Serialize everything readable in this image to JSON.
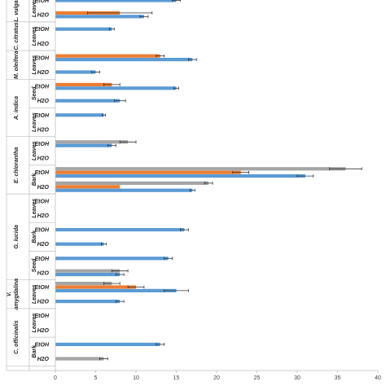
{
  "chart_data": {
    "type": "bar",
    "orientation": "horizontal",
    "xlim": [
      0,
      40
    ],
    "x_ticks": [
      "0",
      "5",
      "10",
      "15",
      "20",
      "25",
      "30",
      "35",
      "40"
    ],
    "grid": false,
    "series_colors": {
      "blue": "#5b9bd5",
      "orange": "#ed7d31",
      "gray": "#a5a5a5"
    },
    "rows": [
      {
        "species": "L. vulgaris",
        "part": "Leaves",
        "solvent": "EtOH",
        "bars": [
          {
            "color": "blue",
            "value": 15,
            "err": 0.5
          }
        ]
      },
      {
        "species": "L. vulgaris",
        "part": "Leaves",
        "solvent": "H2O",
        "bars": [
          {
            "color": "orange",
            "value": 8,
            "err": 4
          },
          {
            "color": "blue",
            "value": 11,
            "err": 0.5
          }
        ]
      },
      {
        "species": "C. citratus",
        "part": "Leaves",
        "solvent": "EtOH",
        "bars": [
          {
            "color": "blue",
            "value": 7,
            "err": 0.3
          }
        ]
      },
      {
        "species": "C. citratus",
        "part": "Leaves",
        "solvent": "H2O",
        "bars": []
      },
      {
        "species": "M. oleifera",
        "part": "Leaves",
        "solvent": "EtOH",
        "bars": [
          {
            "color": "orange",
            "value": 13,
            "err": 0.5
          },
          {
            "color": "blue",
            "value": 17,
            "err": 0.5
          }
        ]
      },
      {
        "species": "M. oleifera",
        "part": "Leaves",
        "solvent": "H2O",
        "bars": [
          {
            "color": "blue",
            "value": 5,
            "err": 0.5
          }
        ]
      },
      {
        "species": "A. indica",
        "part": "Seed",
        "solvent": "EtOH",
        "bars": [
          {
            "color": "orange",
            "value": 7,
            "err": 1
          },
          {
            "color": "blue",
            "value": 15,
            "err": 0.3
          }
        ]
      },
      {
        "species": "A. indica",
        "part": "Seed",
        "solvent": "H2O",
        "bars": [
          {
            "color": "blue",
            "value": 8,
            "err": 0.7
          }
        ]
      },
      {
        "species": "A. indica",
        "part": "Leaves",
        "solvent": "EtOH",
        "bars": [
          {
            "color": "blue",
            "value": 6,
            "err": 0.2
          }
        ]
      },
      {
        "species": "A. indica",
        "part": "Leaves",
        "solvent": "H2O",
        "bars": []
      },
      {
        "species": "E. chlorantha",
        "part": "Leaves",
        "solvent": "EtOH",
        "bars": [
          {
            "color": "gray",
            "value": 9,
            "err": 1
          },
          {
            "color": "blue",
            "value": 7,
            "err": 0.5
          }
        ]
      },
      {
        "species": "E. chlorantha",
        "part": "Leaves",
        "solvent": "H2O",
        "bars": []
      },
      {
        "species": "E. chlorantha",
        "part": "Bark",
        "solvent": "EtOH",
        "bars": [
          {
            "color": "gray",
            "value": 36,
            "err": 2
          },
          {
            "color": "orange",
            "value": 23,
            "err": 1
          },
          {
            "color": "blue",
            "value": 31,
            "err": 1
          }
        ]
      },
      {
        "species": "E. chlorantha",
        "part": "Bark",
        "solvent": "H2O",
        "bars": [
          {
            "color": "gray",
            "value": 19,
            "err": 0.5
          },
          {
            "color": "orange",
            "value": 8,
            "err": 0
          },
          {
            "color": "blue",
            "value": 17,
            "err": 0.3
          }
        ]
      },
      {
        "species": "G. lucida",
        "part": "Leaves",
        "solvent": "EtOH",
        "bars": []
      },
      {
        "species": "G. lucida",
        "part": "Leaves",
        "solvent": "H2O",
        "bars": []
      },
      {
        "species": "G. lucida",
        "part": "Bark",
        "solvent": "EtOH",
        "bars": [
          {
            "color": "blue",
            "value": 16,
            "err": 0.5
          }
        ]
      },
      {
        "species": "G. lucida",
        "part": "Bark",
        "solvent": "H2O",
        "bars": [
          {
            "color": "blue",
            "value": 6,
            "err": 0.3
          }
        ]
      },
      {
        "species": "G. lucida",
        "part": "Seed",
        "solvent": "EtOH",
        "bars": [
          {
            "color": "blue",
            "value": 14,
            "err": 0.5
          }
        ]
      },
      {
        "species": "G. lucida",
        "part": "Seed",
        "solvent": "H2O",
        "bars": [
          {
            "color": "gray",
            "value": 8,
            "err": 1
          },
          {
            "color": "blue",
            "value": 8,
            "err": 0.5
          }
        ]
      },
      {
        "species": "V. amygdalina",
        "part": "Leaves",
        "solvent": "EtOH",
        "bars": [
          {
            "color": "gray",
            "value": 7,
            "err": 1
          },
          {
            "color": "orange",
            "value": 10,
            "err": 1
          },
          {
            "color": "blue",
            "value": 15,
            "err": 1.5
          }
        ]
      },
      {
        "species": "V. amygdalina",
        "part": "Leaves",
        "solvent": "H2O",
        "bars": [
          {
            "color": "blue",
            "value": 8,
            "err": 0.5
          }
        ]
      },
      {
        "species": "C. officinalis",
        "part": "Leaves",
        "solvent": "EtOH",
        "bars": []
      },
      {
        "species": "C. officinalis",
        "part": "Leaves",
        "solvent": "H2O",
        "bars": []
      },
      {
        "species": "C. officinalis",
        "part": "Bark",
        "solvent": "EtOH",
        "bars": [
          {
            "color": "blue",
            "value": 13,
            "err": 0.5
          }
        ]
      },
      {
        "species": "C. officinalis",
        "part": "Bark",
        "solvent": "H2O",
        "bars": [
          {
            "color": "gray",
            "value": 6,
            "err": 0.5
          }
        ]
      }
    ],
    "part_groups": [
      {
        "label": "Leaves",
        "rows": [
          0,
          1
        ]
      },
      {
        "label": "Leaves",
        "rows": [
          2,
          3
        ]
      },
      {
        "label": "Leaves",
        "rows": [
          4,
          5
        ]
      },
      {
        "label": "Seed",
        "rows": [
          6,
          7
        ]
      },
      {
        "label": "Leaves",
        "rows": [
          8,
          9
        ]
      },
      {
        "label": "Leaves",
        "rows": [
          10,
          11
        ]
      },
      {
        "label": "Bark",
        "rows": [
          12,
          13
        ]
      },
      {
        "label": "Leaves",
        "rows": [
          14,
          15
        ]
      },
      {
        "label": "Bark",
        "rows": [
          16,
          17
        ]
      },
      {
        "label": "Seed",
        "rows": [
          18,
          19
        ]
      },
      {
        "label": "Leaves",
        "rows": [
          20,
          21
        ]
      },
      {
        "label": "Leaves",
        "rows": [
          22,
          23
        ]
      },
      {
        "label": "Bark",
        "rows": [
          24,
          25
        ]
      }
    ],
    "species_groups": [
      {
        "label": "L. vulgaris",
        "rows": [
          0,
          1
        ]
      },
      {
        "label": "C. citratus",
        "rows": [
          2,
          3
        ]
      },
      {
        "label": "M. oleifera",
        "rows": [
          4,
          5
        ]
      },
      {
        "label": "A. indica",
        "rows": [
          6,
          9
        ]
      },
      {
        "label": "E. chlorantha",
        "rows": [
          10,
          13
        ]
      },
      {
        "label": "G. lucida",
        "rows": [
          14,
          19
        ]
      },
      {
        "label": "V. amygdalina",
        "rows": [
          20,
          21
        ]
      },
      {
        "label": "C. officinalis",
        "rows": [
          22,
          25
        ]
      }
    ]
  }
}
